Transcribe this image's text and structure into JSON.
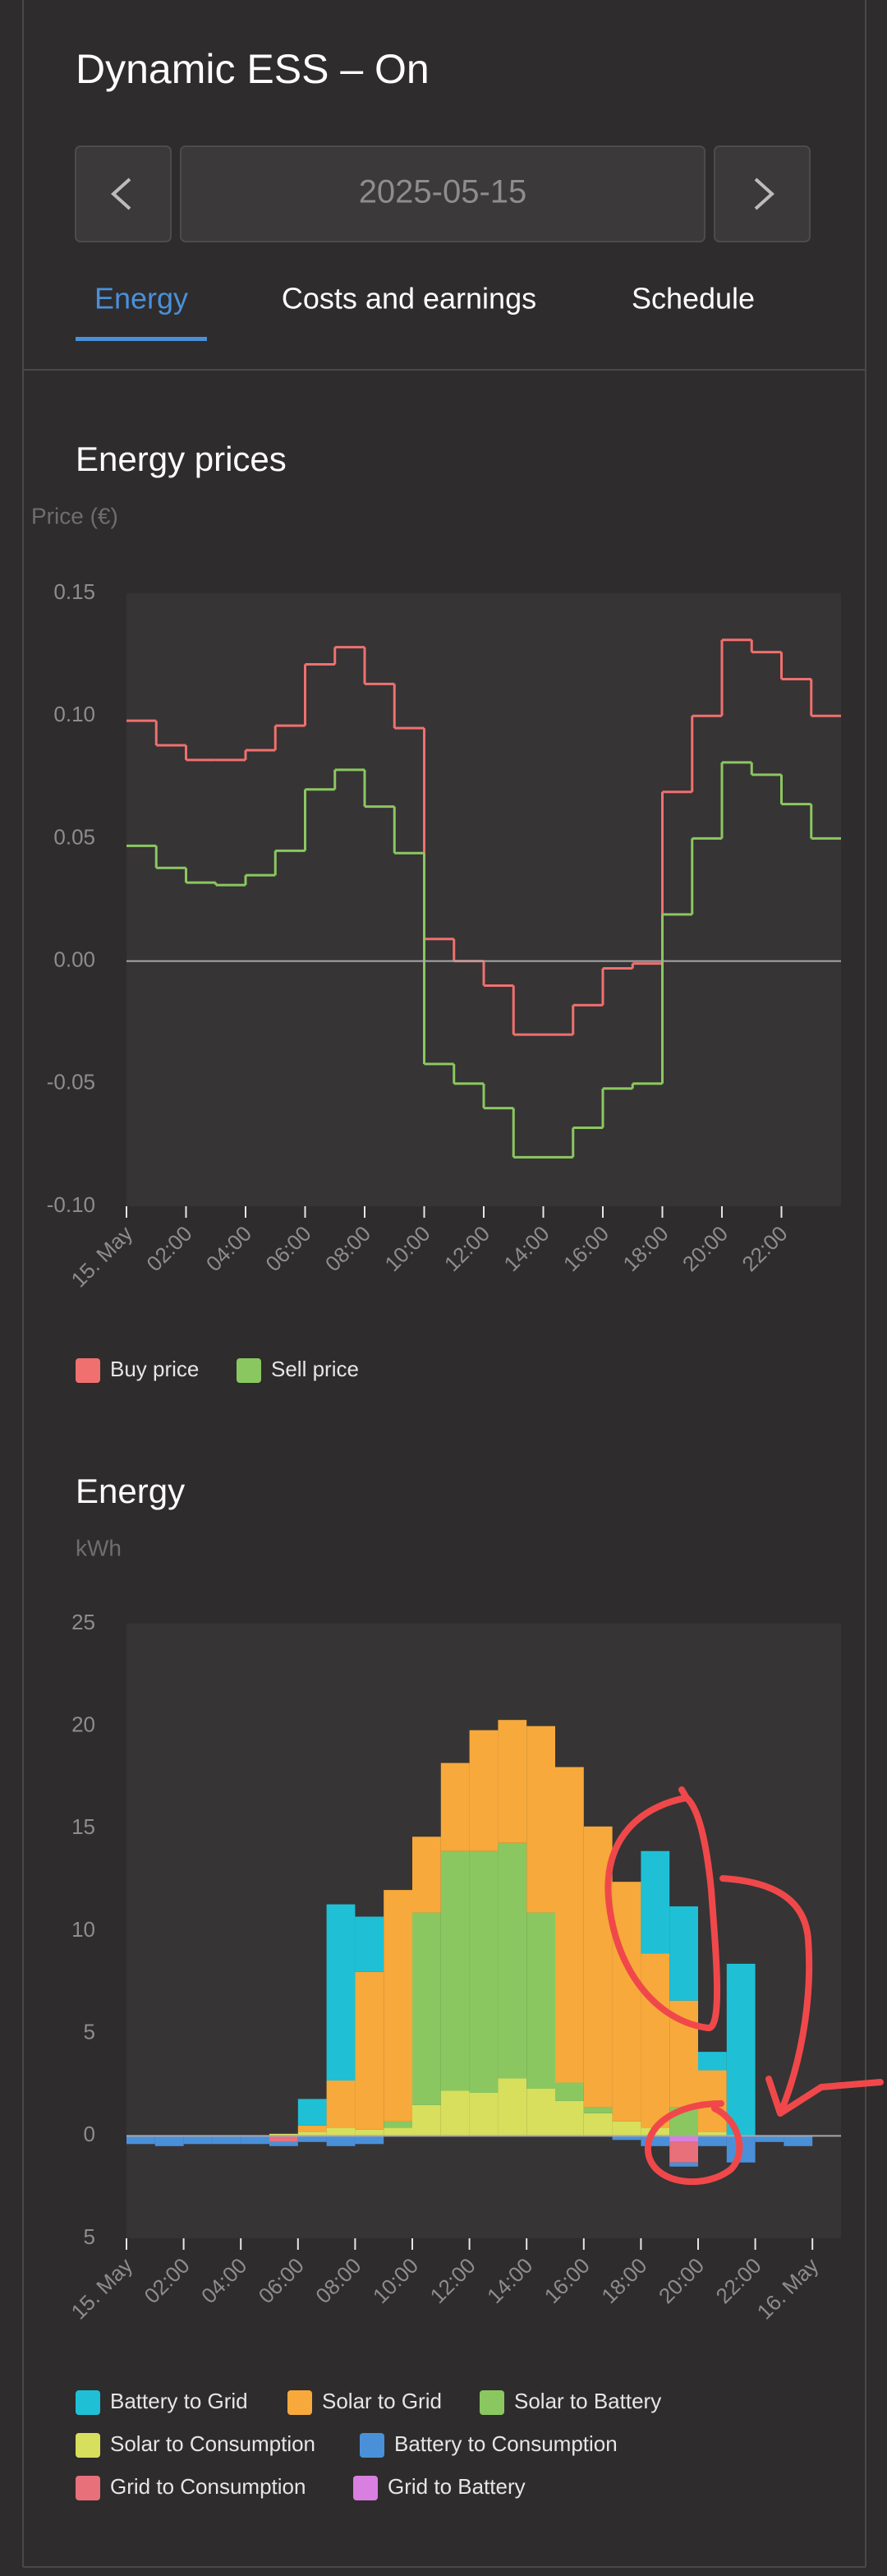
{
  "header": {
    "title": "Dynamic ESS – On",
    "date": "2025-05-15"
  },
  "tabs": [
    "Energy",
    "Costs and earnings",
    "Schedule"
  ],
  "chart_data": [
    {
      "type": "line",
      "step": true,
      "title": "Energy prices",
      "y_label": "Price (€)",
      "x": [
        0,
        1,
        2,
        3,
        4,
        5,
        6,
        7,
        8,
        9,
        10,
        11,
        12,
        13,
        14,
        15,
        16,
        17,
        18,
        19,
        20,
        21,
        22,
        23
      ],
      "xlim": [
        0,
        24
      ],
      "xticks": [
        {
          "value": 0,
          "label": "15. May"
        },
        {
          "value": 2,
          "label": "02:00"
        },
        {
          "value": 4,
          "label": "04:00"
        },
        {
          "value": 6,
          "label": "06:00"
        },
        {
          "value": 8,
          "label": "08:00"
        },
        {
          "value": 10,
          "label": "10:00"
        },
        {
          "value": 12,
          "label": "12:00"
        },
        {
          "value": 14,
          "label": "14:00"
        },
        {
          "value": 16,
          "label": "16:00"
        },
        {
          "value": 18,
          "label": "18:00"
        },
        {
          "value": 20,
          "label": "20:00"
        },
        {
          "value": 22,
          "label": "22:00"
        }
      ],
      "ylim": [
        -0.1,
        0.15
      ],
      "yticks": [
        {
          "value": -0.1,
          "label": "-0.10"
        },
        -0.05,
        {
          "value": 0,
          "label": "0.00"
        },
        0.05,
        {
          "value": 0.1,
          "label": "0.10"
        },
        0.15
      ],
      "series": [
        {
          "name": "Buy price",
          "color": "#f0706f",
          "values": [
            0.098,
            0.088,
            0.082,
            0.082,
            0.086,
            0.096,
            0.121,
            0.128,
            0.113,
            0.095,
            0.009,
            0.0,
            -0.01,
            -0.03,
            -0.03,
            -0.018,
            -0.003,
            -0.001,
            0.069,
            0.1,
            0.131,
            0.126,
            0.115,
            0.1
          ]
        },
        {
          "name": "Sell price",
          "color": "#8bc760",
          "values": [
            0.047,
            0.038,
            0.032,
            0.031,
            0.035,
            0.045,
            0.07,
            0.078,
            0.063,
            0.044,
            -0.042,
            -0.05,
            -0.06,
            -0.08,
            -0.08,
            -0.068,
            -0.052,
            -0.05,
            0.019,
            0.05,
            0.081,
            0.076,
            0.064,
            0.05
          ]
        }
      ]
    },
    {
      "type": "bar",
      "stacked": true,
      "title": "Energy",
      "y_label": "kWh",
      "x": [
        0,
        1,
        2,
        3,
        4,
        5,
        6,
        7,
        8,
        9,
        10,
        11,
        12,
        13,
        14,
        15,
        16,
        17,
        18,
        19,
        20,
        21,
        22,
        23
      ],
      "xlim": [
        0,
        25
      ],
      "xticks": [
        {
          "value": 0,
          "label": "15. May"
        },
        {
          "value": 2,
          "label": "02:00"
        },
        {
          "value": 4,
          "label": "04:00"
        },
        {
          "value": 6,
          "label": "06:00"
        },
        {
          "value": 8,
          "label": "08:00"
        },
        {
          "value": 10,
          "label": "10:00"
        },
        {
          "value": 12,
          "label": "12:00"
        },
        {
          "value": 14,
          "label": "14:00"
        },
        {
          "value": 16,
          "label": "16:00"
        },
        {
          "value": 18,
          "label": "18:00"
        },
        {
          "value": 20,
          "label": "20:00"
        },
        {
          "value": 22,
          "label": "22:00"
        },
        {
          "value": 24,
          "label": "16. May"
        }
      ],
      "ylim": [
        -5,
        25
      ],
      "yticks": [
        {
          "value": -5,
          "label": "5"
        },
        0,
        5,
        10,
        15,
        20,
        25
      ],
      "series": [
        {
          "name": "Battery to Grid",
          "color": "#1fc0d6",
          "values": [
            0,
            0,
            0,
            0,
            0,
            0,
            1.3,
            8.6,
            2.7,
            0,
            0,
            0,
            0,
            0,
            0,
            0,
            0,
            0,
            5.0,
            4.6,
            0.9,
            8.4,
            0,
            0
          ]
        },
        {
          "name": "Solar to Grid",
          "color": "#f7a93b",
          "values": [
            0,
            0,
            0,
            0,
            0,
            0,
            0.3,
            2.3,
            7.7,
            11.3,
            3.7,
            4.3,
            5.9,
            6.0,
            9.1,
            15.4,
            13.7,
            11.7,
            8.5,
            5.2,
            3.0,
            0,
            0,
            0
          ]
        },
        {
          "name": "Solar to Battery",
          "color": "#8bc760",
          "values": [
            0,
            0,
            0,
            0,
            0,
            0,
            0,
            0,
            0,
            0.3,
            9.4,
            11.7,
            11.8,
            11.5,
            8.6,
            0.9,
            0.3,
            0,
            0,
            1.4,
            0,
            0,
            0,
            0
          ]
        },
        {
          "name": "Solar to Consumption",
          "color": "#d7df5c",
          "values": [
            0,
            0,
            0,
            0,
            0,
            0.1,
            0.2,
            0.4,
            0.3,
            0.4,
            1.5,
            2.2,
            2.1,
            2.8,
            2.3,
            1.7,
            1.1,
            0.7,
            0.4,
            0,
            0.2,
            0,
            0,
            0
          ]
        },
        {
          "name": "Battery to Consumption",
          "color": "#4a90d9",
          "values": [
            -0.4,
            -0.5,
            -0.4,
            -0.4,
            -0.4,
            -0.2,
            -0.3,
            -0.5,
            -0.4,
            0,
            0,
            0,
            0,
            0,
            0,
            0,
            0,
            -0.2,
            -0.5,
            -0.2,
            -0.5,
            -1.3,
            -0.3,
            -0.5
          ]
        },
        {
          "name": "Grid to Consumption",
          "color": "#e8707a",
          "values": [
            0,
            0,
            0,
            0,
            0,
            -0.3,
            0,
            0,
            0,
            0,
            0,
            0,
            0,
            0,
            0,
            0,
            0,
            0,
            0,
            -1.0,
            0,
            0,
            0,
            0
          ]
        },
        {
          "name": "Grid to Battery",
          "color": "#d97fe0",
          "values": [
            0,
            0,
            0,
            0,
            0,
            0,
            0,
            0,
            0,
            0,
            0,
            0,
            0,
            0,
            0,
            0,
            0,
            0,
            0,
            -0.3,
            0,
            0,
            0,
            0
          ]
        }
      ]
    }
  ]
}
